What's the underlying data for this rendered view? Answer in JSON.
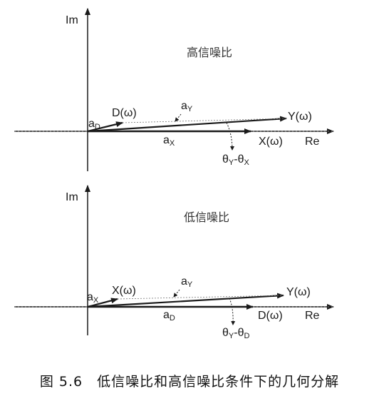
{
  "top": {
    "im": "Im",
    "re": "Re",
    "title": "高信噪比",
    "d": "D(ω)",
    "y": "Y(ω)",
    "x": "X(ω)",
    "a_small": "a",
    "a_small_sub": "D",
    "a_y": "a",
    "a_y_sub": "Y",
    "a_x": "a",
    "a_x_sub": "X",
    "angle_a": "θ",
    "angle_a_sub": "Y",
    "angle_dash": "-θ",
    "angle_b_sub": "X"
  },
  "bottom": {
    "im": "Im",
    "re": "Re",
    "title": "低信噪比",
    "x": "X(ω)",
    "y": "Y(ω)",
    "d": "D(ω)",
    "a_small": "a",
    "a_small_sub": "X",
    "a_y": "a",
    "a_y_sub": "Y",
    "a_d": "a",
    "a_d_sub": "D",
    "angle_a": "θ",
    "angle_a_sub": "Y",
    "angle_dash": "-θ",
    "angle_b_sub": "D"
  },
  "caption": "图 5.6　低信噪比和高信噪比条件下的几何分解"
}
